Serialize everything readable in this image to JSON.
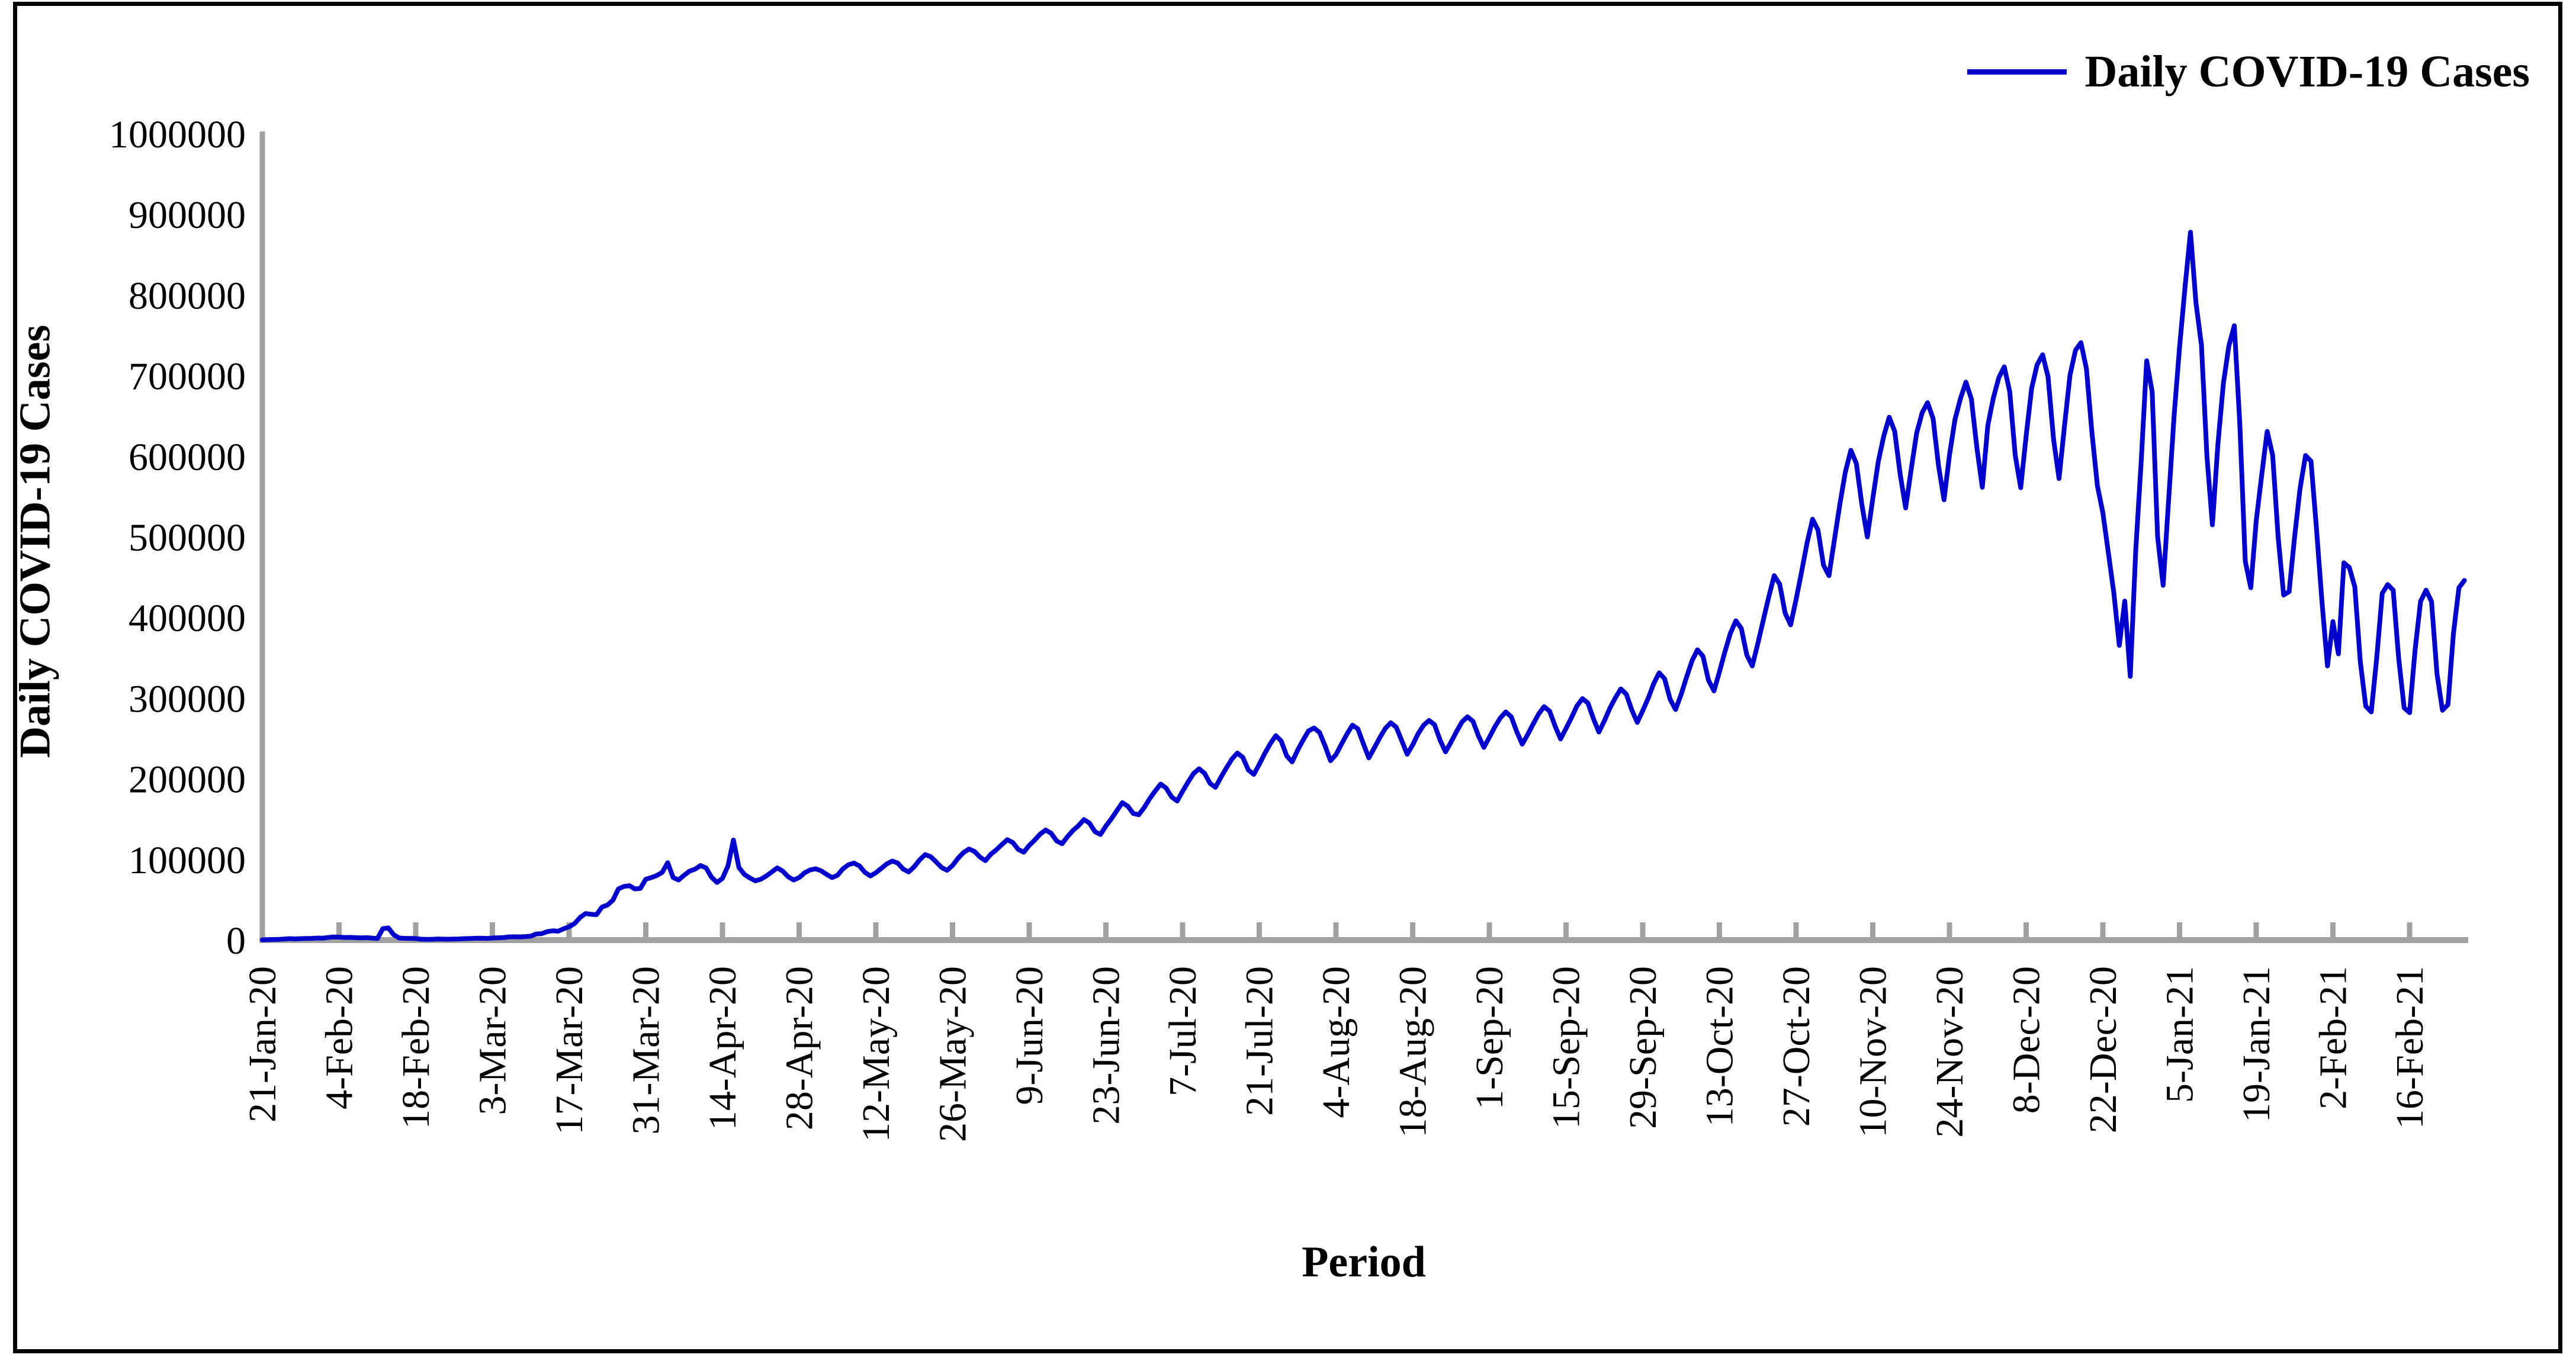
{
  "legend": {
    "label": "Daily COVID-19 Cases"
  },
  "y_axis": {
    "title": "Daily COVID-19 Cases",
    "ticks": [
      0,
      100000,
      200000,
      300000,
      400000,
      500000,
      600000,
      700000,
      800000,
      900000,
      1000000
    ]
  },
  "x_axis": {
    "title": "Period",
    "tick_interval_days": 14
  },
  "colors": {
    "line": "#0000CC",
    "axis": "#A0A0A0",
    "text": "#000000",
    "border": "#000000"
  },
  "chart_data": {
    "type": "line",
    "title": "",
    "series_name": "Daily COVID-19 Cases",
    "start_date": "21-Jan-20",
    "end_date": "26-Feb-21",
    "frequency": "daily",
    "ylim": [
      0,
      1000000
    ],
    "grid": false,
    "legend_position": "top-right",
    "x_tick_labels": [
      "21-Jan-20",
      "4-Feb-20",
      "18-Feb-20",
      "3-Mar-20",
      "17-Mar-20",
      "31-Mar-20",
      "14-Apr-20",
      "28-Apr-20",
      "12-May-20",
      "26-May-20",
      "9-Jun-20",
      "23-Jun-20",
      "7-Jul-20",
      "21-Jul-20",
      "4-Aug-20",
      "18-Aug-20",
      "1-Sep-20",
      "15-Sep-20",
      "29-Sep-20",
      "13-Oct-20",
      "27-Oct-20",
      "10-Nov-20",
      "24-Nov-20",
      "8-Dec-20",
      "22-Dec-20",
      "5-Jan-21",
      "19-Jan-21",
      "2-Feb-21",
      "16-Feb-21"
    ],
    "values": [
      300,
      500,
      700,
      900,
      1300,
      1800,
      1500,
      1800,
      2000,
      2100,
      2600,
      2400,
      3200,
      3900,
      3700,
      3200,
      3400,
      3000,
      2700,
      3000,
      2500,
      2000,
      14200,
      15100,
      6500,
      2600,
      2200,
      2100,
      1900,
      1100,
      900,
      1000,
      1400,
      1200,
      1100,
      1300,
      1500,
      1800,
      2000,
      2300,
      2400,
      2100,
      2600,
      2900,
      3100,
      4000,
      4100,
      4000,
      4300,
      4900,
      7500,
      8000,
      10500,
      11500,
      11000,
      14000,
      16500,
      20500,
      28000,
      33000,
      32000,
      31500,
      41000,
      43500,
      49500,
      63500,
      66500,
      67500,
      63500,
      64000,
      75500,
      77500,
      80000,
      84000,
      96000,
      77500,
      74500,
      80500,
      85500,
      88000,
      92500,
      89500,
      78000,
      71500,
      76500,
      92000,
      124000,
      90000,
      81500,
      77000,
      73500,
      75500,
      79500,
      84500,
      89500,
      85500,
      78500,
      74500,
      77500,
      83500,
      87000,
      88500,
      86000,
      81500,
      77500,
      80500,
      88500,
      93500,
      95500,
      92000,
      84000,
      79500,
      83500,
      89000,
      94500,
      98000,
      95500,
      88000,
      84500,
      91000,
      99500,
      106000,
      103500,
      97000,
      90000,
      86500,
      92500,
      101500,
      108500,
      113000,
      110000,
      103000,
      98500,
      106500,
      112000,
      118500,
      124500,
      121000,
      112500,
      109000,
      117500,
      124000,
      131500,
      136500,
      132500,
      123000,
      119500,
      128500,
      136000,
      142000,
      149500,
      145000,
      134500,
      131000,
      141500,
      150500,
      160500,
      170500,
      166000,
      157000,
      155500,
      164500,
      175500,
      185000,
      193500,
      188500,
      177500,
      172500,
      184500,
      196000,
      206500,
      212500,
      207000,
      194500,
      189500,
      202000,
      213500,
      224500,
      232000,
      226500,
      211000,
      205500,
      218000,
      231500,
      243500,
      253500,
      247000,
      228500,
      221000,
      235500,
      248000,
      259500,
      263000,
      257500,
      241000,
      222500,
      230000,
      243000,
      255500,
      266500,
      262000,
      243500,
      226000,
      238500,
      251000,
      262500,
      269500,
      264000,
      247500,
      230500,
      242000,
      256000,
      266500,
      272500,
      267000,
      248000,
      233500,
      245500,
      258500,
      270500,
      277000,
      271500,
      253500,
      239000,
      251500,
      264500,
      275500,
      283000,
      277000,
      258500,
      243000,
      255000,
      268000,
      280500,
      289500,
      284000,
      265500,
      249500,
      262500,
      276000,
      290500,
      299500,
      294000,
      274500,
      258000,
      272000,
      287500,
      300500,
      311500,
      305000,
      285500,
      270000,
      284500,
      300000,
      318000,
      331500,
      324000,
      298500,
      286000,
      304500,
      326000,
      346500,
      360000,
      352000,
      322500,
      309000,
      332500,
      357500,
      380500,
      396000,
      386500,
      353500,
      340000,
      367500,
      396500,
      425500,
      452000,
      441500,
      405500,
      391000,
      422500,
      457000,
      492500,
      522000,
      508500,
      465000,
      452000,
      497000,
      541000,
      581000,
      607500,
      591000,
      540500,
      500000,
      547500,
      593500,
      625000,
      648500,
      631000,
      577500,
      536000,
      583500,
      628500,
      654000,
      666500,
      647000,
      588500,
      546000,
      601500,
      645500,
      671500,
      692000,
      671000,
      610500,
      561500,
      638500,
      672000,
      697500,
      711000,
      680000,
      601500,
      561000,
      625500,
      684500,
      713500,
      726000,
      698500,
      621000,
      572500,
      638000,
      700500,
      731500,
      741000,
      708500,
      630000,
      563500,
      530000,
      480500,
      431000,
      365500,
      420500,
      327000,
      482500,
      594000,
      718500,
      680000,
      500000,
      440000,
      545000,
      650000,
      735000,
      810000,
      878000,
      790000,
      738000,
      600000,
      515000,
      615000,
      690000,
      737000,
      762000,
      640000,
      470000,
      437000,
      520000,
      577000,
      631000,
      601000,
      500000,
      428000,
      432000,
      500000,
      560000,
      601000,
      594000,
      510000,
      420000,
      340000,
      395000,
      355000,
      468000,
      462000,
      438000,
      345000,
      290000,
      283000,
      350000,
      430000,
      441000,
      434000,
      350000,
      288000,
      282000,
      360000,
      420000,
      434000,
      420000,
      330000,
      285000,
      292000,
      380000,
      437000,
      446000
    ]
  }
}
